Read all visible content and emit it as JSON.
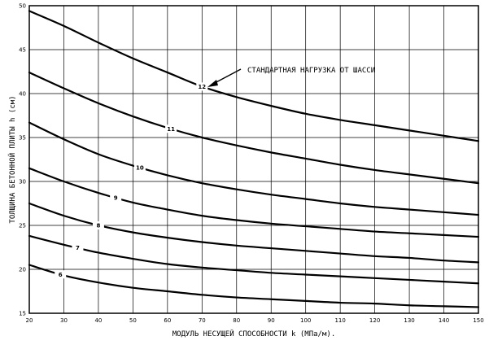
{
  "chart_data": {
    "type": "line",
    "title": "",
    "xlabel": "МОДУЛЬ НЕСУЩЕЙ СПОСОБНОСТИ k (МПа/м).",
    "ylabel": "ТОЛЩИНА БЕТОННОЙ ПЛИТЫ h (см)",
    "xlim": [
      20,
      150
    ],
    "ylim": [
      15,
      50
    ],
    "x_ticks": [
      20,
      30,
      40,
      50,
      60,
      70,
      80,
      90,
      100,
      110,
      120,
      130,
      140,
      150
    ],
    "y_ticks": [
      15,
      20,
      25,
      30,
      35,
      40,
      45,
      50
    ],
    "grid": true,
    "annotation": "СТАНДАРТНАЯ НАГРУЗКА ОТ ШАССИ",
    "annotation_target": "12",
    "label_x": [
      70,
      61,
      52,
      45,
      40,
      34,
      29
    ],
    "x": [
      20,
      30,
      40,
      50,
      60,
      70,
      80,
      90,
      100,
      110,
      120,
      130,
      140,
      150
    ],
    "series": [
      {
        "name": "12",
        "values": [
          49.4,
          47.7,
          45.8,
          44.0,
          42.4,
          40.8,
          39.6,
          38.6,
          37.7,
          37.0,
          36.4,
          35.8,
          35.2,
          34.6
        ]
      },
      {
        "name": "11",
        "values": [
          42.4,
          40.6,
          38.9,
          37.4,
          36.1,
          35.0,
          34.1,
          33.3,
          32.6,
          31.9,
          31.3,
          30.8,
          30.3,
          29.8
        ]
      },
      {
        "name": "10",
        "values": [
          36.7,
          34.8,
          33.1,
          31.8,
          30.7,
          29.8,
          29.1,
          28.5,
          28.0,
          27.5,
          27.1,
          26.8,
          26.5,
          26.2
        ]
      },
      {
        "name": "9",
        "values": [
          31.5,
          30.0,
          28.7,
          27.6,
          26.8,
          26.1,
          25.6,
          25.2,
          24.9,
          24.6,
          24.3,
          24.1,
          23.9,
          23.7
        ]
      },
      {
        "name": "8",
        "values": [
          27.5,
          26.1,
          25.0,
          24.2,
          23.6,
          23.1,
          22.7,
          22.4,
          22.1,
          21.8,
          21.5,
          21.3,
          21.0,
          20.8
        ]
      },
      {
        "name": "7",
        "values": [
          23.8,
          22.8,
          21.9,
          21.2,
          20.6,
          20.2,
          19.9,
          19.6,
          19.4,
          19.2,
          19.0,
          18.8,
          18.6,
          18.4
        ]
      },
      {
        "name": "6",
        "values": [
          20.5,
          19.3,
          18.5,
          17.9,
          17.5,
          17.1,
          16.8,
          16.6,
          16.4,
          16.2,
          16.1,
          15.9,
          15.8,
          15.7
        ]
      }
    ]
  }
}
